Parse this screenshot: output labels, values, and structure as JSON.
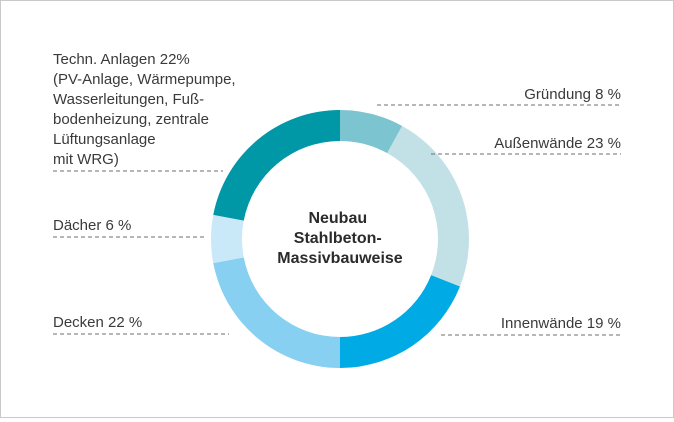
{
  "chart_data": {
    "type": "pie",
    "center_label": [
      "Neubau",
      "Stahlbeton-",
      "Massivbauweise"
    ],
    "slices": [
      {
        "label": "Gründung 8 %",
        "value": 8,
        "color": "#7cc4d0"
      },
      {
        "label": "Außenwände 23 %",
        "value": 23,
        "color": "#c2e1e7"
      },
      {
        "label": "Innenwände 19 %",
        "value": 19,
        "color": "#00aae4"
      },
      {
        "label": "Decken 22 %",
        "value": 22,
        "color": "#87d0f2"
      },
      {
        "label": "Dächer 6 %",
        "value": 6,
        "color": "#c9e9f9"
      },
      {
        "label": [
          "Techn. Anlagen 22%",
          "(PV-Anlage, Wärmepumpe,",
          "Wasserleitungen, Fuß-",
          "bodenheizung, zentrale",
          "Lüftungsanlage",
          "mit WRG)"
        ],
        "value": 22,
        "color": "#0097a7"
      }
    ]
  }
}
